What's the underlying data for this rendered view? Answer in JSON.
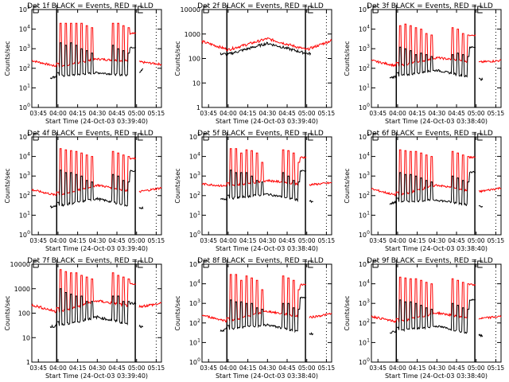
{
  "chart_data": [
    {
      "type": "line",
      "title": "Det 1f BLACK = Events, RED = LLD",
      "xlabel": "Start Time (24-Oct-03 03:39:40)",
      "ylabel": "Counts/sec",
      "xticks": [
        "03:45",
        "04:00",
        "04:15",
        "04:30",
        "04:45",
        "05:00",
        "05:15"
      ],
      "yscale": "log",
      "ylim": [
        1,
        100000
      ],
      "ytick_style": "exp",
      "baseline": {
        "red": [
          250,
          120,
          300,
          220,
          160
        ],
        "black": [
          20,
          40,
          60,
          40,
          1200
        ]
      },
      "spikes": {
        "red": [
          20000,
          20000,
          20000,
          20000,
          20000,
          15000,
          12000
        ],
        "black": [
          2000,
          1500,
          2000,
          1500,
          1000,
          800,
          600
        ]
      },
      "late_level": {
        "red": 6000,
        "black": 1200
      },
      "vlines_solid": [
        "04:00",
        "05:00"
      ],
      "vline_dotted": "05:15"
    },
    {
      "type": "line",
      "title": "Det 2f BLACK = Events, RED = LLD",
      "xlabel": "Start Time (24-Oct-03 03:39:40)",
      "ylabel": "Counts/sec",
      "xticks": [
        "03:45",
        "04:00",
        "04:15",
        "04:30",
        "04:45",
        "05:00",
        "05:15"
      ],
      "yscale": "log",
      "ylim": [
        1,
        10000
      ],
      "ytick_style": "plain",
      "yticklabels": [
        "1",
        "10",
        "100",
        "1000",
        "10000"
      ],
      "baseline": {
        "red": [
          500,
          230,
          650,
          230,
          550
        ],
        "black": [
          170,
          150,
          420,
          160,
          160
        ]
      },
      "spikes": null,
      "vlines_solid": [
        "04:00",
        "05:00"
      ],
      "vline_dotted": "05:15"
    },
    {
      "type": "line",
      "title": "Det 3f BLACK = Events, RED = LLD",
      "xlabel": "Start Time (24-Oct-03 03:38:40)",
      "ylabel": "Counts/sec",
      "xticks": [
        "03:45",
        "04:00",
        "04:15",
        "04:30",
        "04:45",
        "05:00",
        "05:15"
      ],
      "yscale": "log",
      "ylim": [
        1,
        100000
      ],
      "ytick_style": "exp",
      "baseline": {
        "red": [
          250,
          130,
          350,
          200,
          250
        ],
        "black": [
          20,
          40,
          80,
          30,
          20
        ]
      },
      "spikes": {
        "red": [
          15000,
          18000,
          15000,
          12000,
          10000,
          6000,
          5000
        ],
        "black": [
          1200,
          1000,
          800,
          500,
          600,
          500,
          400
        ]
      },
      "late_level": {
        "red": 5000,
        "black": 1200
      },
      "vlines_solid": [
        "04:00",
        "05:00"
      ],
      "vline_dotted": "05:15"
    },
    {
      "type": "line",
      "title": "Det 4f BLACK = Events, RED = LLD",
      "xlabel": "Start Time (24-Oct-03 03:39:40)",
      "ylabel": "Counts/sec",
      "xticks": [
        "03:45",
        "04:00",
        "04:15",
        "04:30",
        "04:45",
        "05:00",
        "05:15"
      ],
      "yscale": "log",
      "ylim": [
        1,
        100000
      ],
      "ytick_style": "exp",
      "baseline": {
        "red": [
          200,
          100,
          350,
          150,
          250
        ],
        "black": [
          20,
          30,
          70,
          25,
          20
        ]
      },
      "spikes": {
        "red": [
          25000,
          22000,
          20000,
          18000,
          15000,
          12000,
          10000
        ],
        "black": [
          2000,
          1500,
          1500,
          1200,
          1000,
          600,
          500
        ]
      },
      "late_level": {
        "red": 8000,
        "black": 1800
      },
      "vlines_solid": [
        "04:00",
        "05:00"
      ],
      "vline_dotted": "05:15"
    },
    {
      "type": "line",
      "title": "Det 5f BLACK = Events, RED = LLD",
      "xlabel": "Start Time (24-Oct-03 03:38:40)",
      "ylabel": "Counts/sec",
      "xticks": [
        "03:45",
        "04:00",
        "04:15",
        "04:30",
        "04:45",
        "05:00",
        "05:15"
      ],
      "yscale": "log",
      "ylim": [
        1,
        100000
      ],
      "ytick_style": "exp",
      "baseline": {
        "red": [
          400,
          300,
          600,
          350,
          450
        ],
        "black": [
          50,
          70,
          120,
          50,
          50
        ]
      },
      "spikes": {
        "red": [
          25000,
          25000,
          15000,
          22000,
          20000,
          15000,
          5000
        ],
        "black": [
          2000,
          1500,
          1500,
          1500,
          1000,
          600,
          500
        ]
      },
      "late_level": {
        "red": 9000,
        "black": 1800
      },
      "vlines_solid": [
        "04:00",
        "05:00"
      ],
      "vline_dotted": "05:15"
    },
    {
      "type": "line",
      "title": "Det 6f BLACK = Events, RED = LLD",
      "xlabel": "Start Time (24-Oct-03 03:38:40)",
      "ylabel": "Counts/sec",
      "xticks": [
        "03:45",
        "04:00",
        "04:15",
        "04:30",
        "04:45",
        "05:00",
        "05:15"
      ],
      "yscale": "log",
      "ylim": [
        1,
        100000
      ],
      "ytick_style": "exp",
      "baseline": {
        "red": [
          220,
          100,
          350,
          150,
          250
        ],
        "black": [
          20,
          50,
          60,
          30,
          20
        ]
      },
      "spikes": {
        "red": [
          22000,
          20000,
          18000,
          18000,
          15000,
          12000,
          10000
        ],
        "black": [
          1500,
          1200,
          1200,
          1000,
          800,
          600,
          500
        ]
      },
      "late_level": {
        "red": 9000,
        "black": 1600
      },
      "vlines_solid": [
        "04:00",
        "05:00"
      ],
      "vline_dotted": "05:15"
    },
    {
      "type": "line",
      "title": "Det 7f BLACK = Events, RED = LLD",
      "xlabel": "Start Time (24-Oct-03 03:39:40)",
      "ylabel": "Counts/sec",
      "xticks": [
        "03:45",
        "04:00",
        "04:15",
        "04:30",
        "04:45",
        "05:00",
        "05:15"
      ],
      "yscale": "log",
      "ylim": [
        1,
        10000
      ],
      "ytick_style": "plain",
      "yticklabels": [
        "1",
        "10",
        "100",
        "1000",
        "10000"
      ],
      "baseline": {
        "red": [
          220,
          110,
          320,
          180,
          250
        ],
        "black": [
          25,
          30,
          70,
          30,
          20
        ]
      },
      "spikes": {
        "red": [
          6000,
          5000,
          4500,
          4500,
          3500,
          3000,
          2500
        ],
        "black": [
          1000,
          700,
          600,
          500,
          500,
          300,
          300
        ]
      },
      "late_level": {
        "red": 1500,
        "black": 250
      },
      "vlines_solid": [
        "04:00",
        "05:00"
      ],
      "vline_dotted": "05:15"
    },
    {
      "type": "line",
      "title": "Det 8f BLACK = Events, RED = LLD",
      "xlabel": "Start Time (24-Oct-03 03:38:40)",
      "ylabel": "Counts/sec",
      "xticks": [
        "03:45",
        "04:00",
        "04:15",
        "04:30",
        "04:45",
        "05:00",
        "05:15"
      ],
      "yscale": "log",
      "ylim": [
        1,
        100000
      ],
      "ytick_style": "exp",
      "baseline": {
        "red": [
          250,
          120,
          400,
          180,
          300
        ],
        "black": [
          20,
          50,
          80,
          30,
          20
        ]
      },
      "spikes": {
        "red": [
          30000,
          30000,
          15000,
          25000,
          20000,
          15000,
          5000
        ],
        "black": [
          1500,
          1200,
          1200,
          1000,
          1000,
          600,
          500
        ]
      },
      "late_level": {
        "red": 9000,
        "black": 2000
      },
      "vlines_solid": [
        "04:00",
        "05:00"
      ],
      "vline_dotted": "05:15"
    },
    {
      "type": "line",
      "title": "Det 9f BLACK = Events, RED = LLD",
      "xlabel": "Start Time (24-Oct-03 03:38:40)",
      "ylabel": "Counts/sec",
      "xticks": [
        "03:45",
        "04:00",
        "04:15",
        "04:30",
        "04:45",
        "05:00",
        "05:15"
      ],
      "yscale": "log",
      "ylim": [
        1,
        100000
      ],
      "ytick_style": "exp",
      "baseline": {
        "red": [
          220,
          110,
          330,
          160,
          220
        ],
        "black": [
          20,
          40,
          70,
          25,
          18
        ]
      },
      "spikes": {
        "red": [
          22000,
          20000,
          18000,
          18000,
          15000,
          12000,
          10000
        ],
        "black": [
          1500,
          1200,
          1200,
          1000,
          800,
          600,
          500
        ]
      },
      "late_level": {
        "red": 9000,
        "black": 1600
      },
      "vlines_solid": [
        "04:00",
        "05:00"
      ],
      "vline_dotted": "05:15"
    }
  ],
  "colors": {
    "events": "#000000",
    "lld": "#ff0000"
  }
}
